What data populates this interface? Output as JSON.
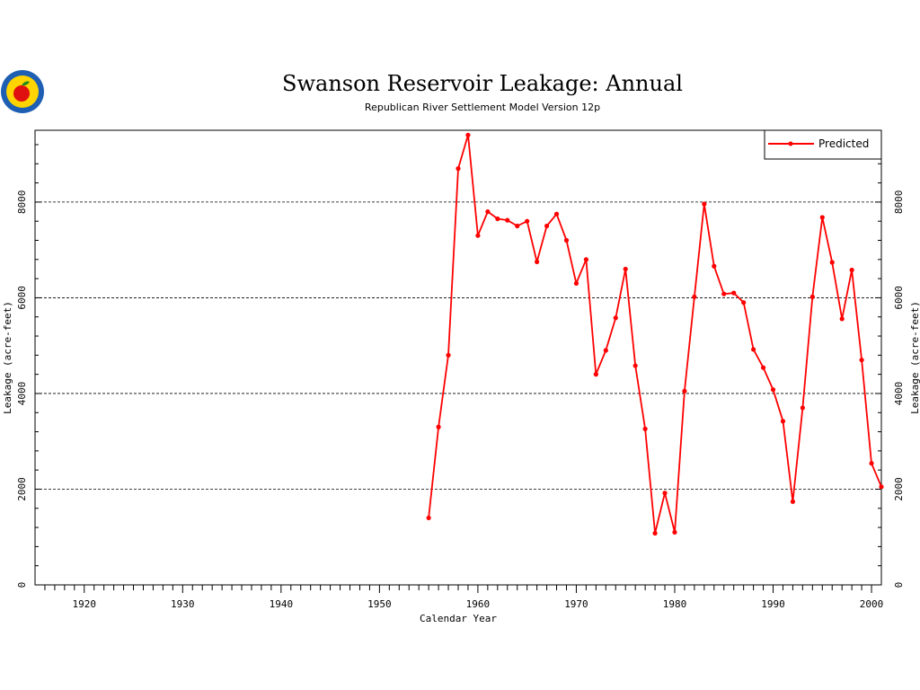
{
  "chart_data": {
    "type": "line",
    "title": "Swanson Reservoir Leakage: Annual",
    "subtitle": "Republican River Settlement Model Version 12p",
    "xlabel": "Calendar Year",
    "ylabel": "Leakage (acre-feet)",
    "ylabel_right": "Leakage (acre-feet)",
    "xlim": [
      1915,
      2001
    ],
    "ylim": [
      0,
      9500
    ],
    "x_ticks": [
      1920,
      1930,
      1940,
      1950,
      1960,
      1970,
      1980,
      1990,
      2000
    ],
    "y_ticks": [
      0,
      2000,
      4000,
      6000,
      8000
    ],
    "grid": "horizontal dashed at 2000, 4000, 6000, 8000",
    "legend_position": "top-right",
    "series": [
      {
        "name": "Predicted",
        "color": "#ff0000",
        "x": [
          1955,
          1956,
          1957,
          1958,
          1959,
          1960,
          1961,
          1962,
          1963,
          1964,
          1965,
          1966,
          1967,
          1968,
          1969,
          1970,
          1971,
          1972,
          1973,
          1974,
          1975,
          1976,
          1977,
          1978,
          1979,
          1980,
          1981,
          1982,
          1983,
          1984,
          1985,
          1986,
          1987,
          1988,
          1989,
          1990,
          1991,
          1992,
          1993,
          1994,
          1995,
          1996,
          1997,
          1998,
          1999,
          2000,
          2001
        ],
        "values": [
          1400,
          3300,
          4800,
          8700,
          9400,
          7300,
          7800,
          7650,
          7620,
          7500,
          7600,
          6750,
          7500,
          7750,
          7200,
          6300,
          6800,
          4400,
          4900,
          5580,
          6600,
          4580,
          3260,
          1080,
          1920,
          1100,
          4050,
          6020,
          7960,
          6660,
          6080,
          6100,
          5900,
          4920,
          4540,
          4080,
          3420,
          1740,
          3700,
          6020,
          7680,
          6740,
          5560,
          6580,
          4700,
          2540,
          2050
        ]
      }
    ]
  },
  "logo": {
    "name": "apple-seal-logo"
  }
}
